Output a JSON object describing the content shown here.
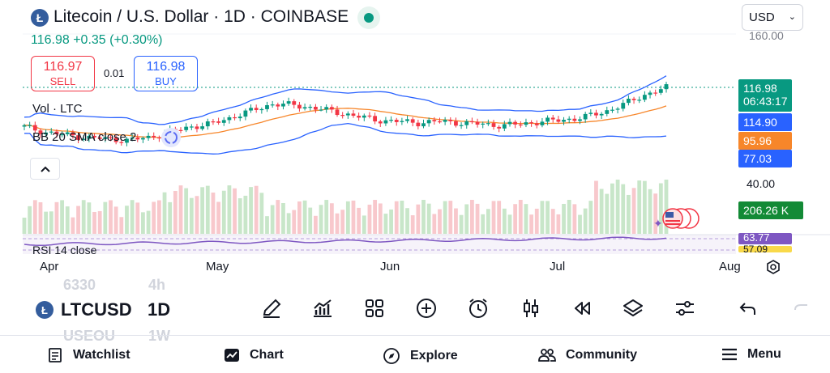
{
  "header": {
    "coin_logo": "Ł",
    "title": "Litecoin / U.S. Dollar · 1D · COINBASE",
    "currency": "USD"
  },
  "quote": {
    "price_line": "116.98 +0.35 (+0.30%)",
    "sell_price": "116.97",
    "sell_label": "SELL",
    "spread": "0.01",
    "buy_price": "116.98",
    "buy_label": "BUY"
  },
  "legend": {
    "volume": "Vol · LTC",
    "bb": "BB 20 SMA close 2",
    "rsi": "RSI 14 close"
  },
  "price_axis": {
    "top_partial": "160.00",
    "level_40": "40.00"
  },
  "price_tags": {
    "last_price": "116.98",
    "countdown": "06:43:17",
    "bb_upper": "114.90",
    "bb_basis": "95.96",
    "bb_lower": "77.03",
    "volume": "206.26 K",
    "rsi": "63.77",
    "rsi_lower": "57.09"
  },
  "x_axis": [
    "Apr",
    "May",
    "Jun",
    "Jul",
    "Aug"
  ],
  "toolbar": {
    "symbol": "LTCUSD",
    "interval": "1D",
    "ghost_symbol_above": "6330",
    "ghost_interval_above": "4h",
    "ghost_symbol_below": "USEOU",
    "ghost_interval_below": "1W",
    "tools": [
      "draw-icon",
      "indicators-icon",
      "layout-icon",
      "add-icon",
      "alert-icon",
      "chart-type-icon",
      "replay-icon",
      "layers-icon",
      "settings-sliders-icon",
      "undo-icon",
      "redo-icon"
    ]
  },
  "nav": {
    "watchlist": "Watchlist",
    "chart": "Chart",
    "explore": "Explore",
    "community": "Community",
    "menu": "Menu"
  },
  "colors": {
    "up": "#089981",
    "down": "#f23645",
    "bb_band": "#2962ff",
    "bb_basis": "#f7862a",
    "rsi": "#7e57c2"
  },
  "chart_data": {
    "type": "candlestick",
    "symbol": "LTCUSD",
    "interval": "1D",
    "x_labels": [
      "Apr",
      "May",
      "Jun",
      "Jul",
      "Aug"
    ],
    "close_estimates": [
      88,
      84,
      82,
      80,
      79,
      78,
      80,
      84,
      88,
      90,
      95,
      100,
      105,
      104,
      102,
      99,
      96,
      93,
      92,
      91,
      92,
      91,
      90,
      89,
      90,
      92,
      93,
      95,
      99,
      105,
      112,
      117
    ],
    "last_price": 116.98,
    "bb_upper": 114.9,
    "bb_basis": 95.96,
    "bb_lower": 77.03,
    "volume_last": "206.26 K",
    "rsi_last": 63.77
  }
}
